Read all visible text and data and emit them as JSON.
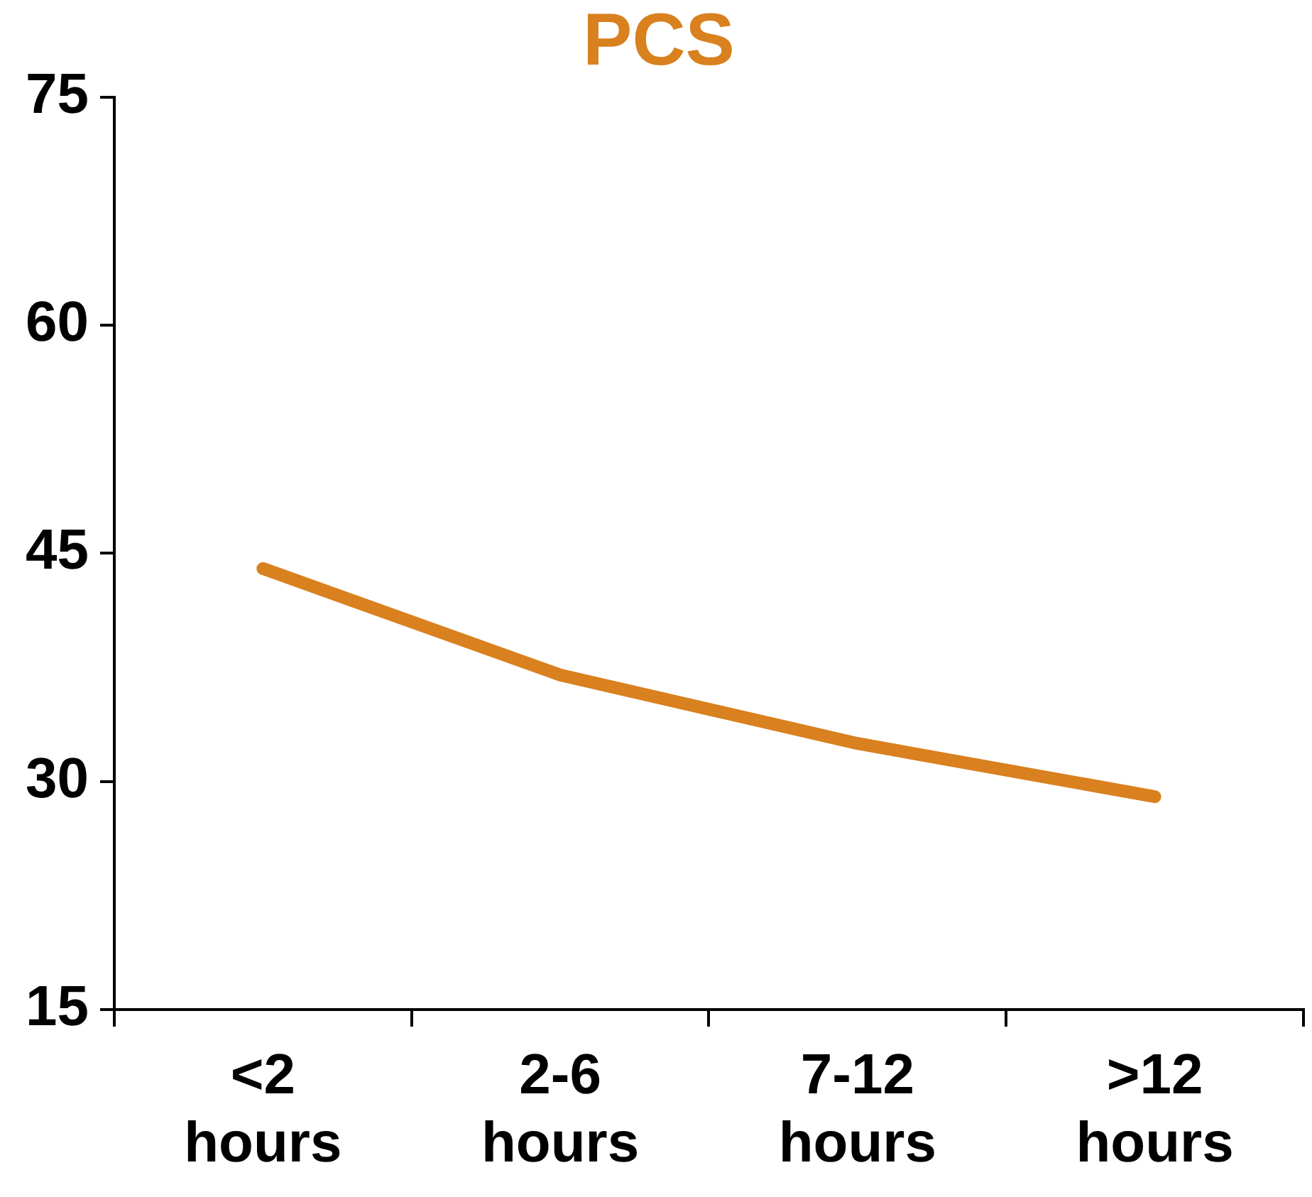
{
  "chart_data": {
    "type": "line",
    "title": "PCS",
    "categories": [
      "<2 hours",
      "2-6 hours",
      "7-12 hours",
      ">12 hours"
    ],
    "series": [
      {
        "color": "#d9801f",
        "values": [
          44,
          37,
          32.5,
          29
        ]
      }
    ],
    "ylim": [
      15,
      75
    ],
    "yticks": [
      15,
      30,
      45,
      60,
      75
    ],
    "grid": false,
    "legend": false,
    "marker": "none",
    "line_style": "solid"
  }
}
